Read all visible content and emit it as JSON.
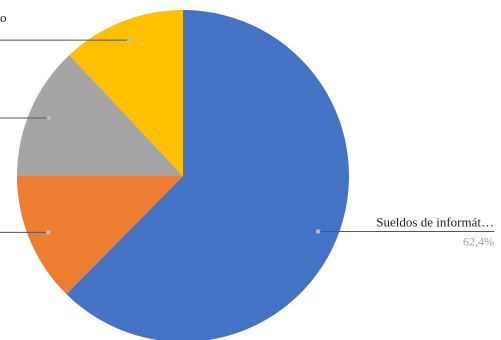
{
  "chart_data": {
    "type": "pie",
    "title": "",
    "legend": "none",
    "slices": [
      {
        "label": "Sueldos de informát…",
        "value": 62.4,
        "value_label": "62,4%",
        "color": "#4472c4"
      },
      {
        "label": "",
        "value": 12.6,
        "value_label": "",
        "color": "#ed7d31"
      },
      {
        "label": "",
        "value": 13.0,
        "value_label": "",
        "color": "#a5a5a5"
      },
      {
        "label": "",
        "value": 12.0,
        "value_label": "",
        "color": "#ffc000"
      }
    ],
    "partial_labels": [
      "o"
    ]
  },
  "colors": {
    "leader_line": "#555555",
    "leader_dot": "#bdbdbd",
    "value_label": "#9e9e9e"
  }
}
